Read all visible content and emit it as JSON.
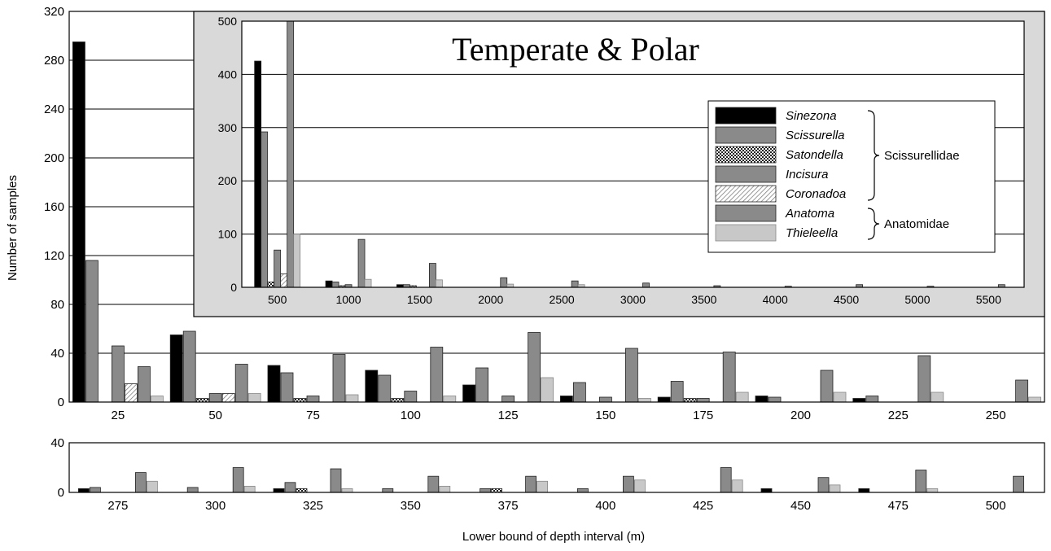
{
  "patterns": {
    "solid": "#000000",
    "gray": "#8a8a8a",
    "checker": "checker",
    "hatch": "hatch",
    "light": "#c8c8c8"
  },
  "chart_data": [
    {
      "id": "main-top",
      "type": "bar",
      "xlabel": "",
      "ylabel": "Number of samples",
      "ylim": [
        0,
        320
      ],
      "yticks": [
        0,
        40,
        80,
        120,
        160,
        200,
        240,
        280,
        320
      ],
      "grid": true,
      "categories": [
        "25",
        "50",
        "75",
        "100",
        "125",
        "150",
        "175",
        "200",
        "225",
        "250"
      ],
      "series": [
        {
          "name": "Sinezona",
          "values": [
            295,
            55,
            30,
            26,
            14,
            5,
            4,
            5,
            3,
            0
          ]
        },
        {
          "name": "Scissurella",
          "values": [
            116,
            58,
            24,
            22,
            28,
            16,
            17,
            4,
            5,
            0
          ]
        },
        {
          "name": "Satondella",
          "values": [
            0,
            3,
            3,
            3,
            0,
            0,
            3,
            0,
            0,
            0
          ]
        },
        {
          "name": "Incisura",
          "values": [
            46,
            7,
            5,
            9,
            5,
            4,
            3,
            0,
            0,
            0
          ]
        },
        {
          "name": "Coronadoa",
          "values": [
            15,
            7,
            0,
            0,
            0,
            0,
            0,
            0,
            0,
            0
          ]
        },
        {
          "name": "Anatoma",
          "values": [
            29,
            31,
            39,
            45,
            57,
            44,
            41,
            26,
            38,
            18
          ]
        },
        {
          "name": "Thieleella",
          "values": [
            5,
            7,
            6,
            5,
            20,
            3,
            8,
            8,
            8,
            4
          ]
        }
      ]
    },
    {
      "id": "main-bottom",
      "type": "bar",
      "xlabel": "Lower bound of depth interval (m)",
      "ylabel": "",
      "ylim": [
        0,
        40
      ],
      "yticks": [
        0,
        40
      ],
      "grid": true,
      "categories": [
        "275",
        "300",
        "325",
        "350",
        "375",
        "400",
        "425",
        "450",
        "475",
        "500"
      ],
      "series": [
        {
          "name": "Sinezona",
          "values": [
            3,
            0,
            3,
            0,
            0,
            0,
            0,
            3,
            3,
            0
          ]
        },
        {
          "name": "Scissurella",
          "values": [
            4,
            4,
            8,
            3,
            3,
            3,
            0,
            0,
            0,
            0
          ]
        },
        {
          "name": "Satondella",
          "values": [
            0,
            0,
            3,
            0,
            3,
            0,
            0,
            0,
            0,
            0
          ]
        },
        {
          "name": "Incisura",
          "values": [
            0,
            0,
            0,
            0,
            0,
            0,
            0,
            0,
            0,
            0
          ]
        },
        {
          "name": "Coronadoa",
          "values": [
            0,
            0,
            0,
            0,
            0,
            0,
            0,
            0,
            0,
            0
          ]
        },
        {
          "name": "Anatoma",
          "values": [
            16,
            20,
            19,
            13,
            13,
            13,
            20,
            12,
            18,
            13
          ]
        },
        {
          "name": "Thieleella",
          "values": [
            9,
            5,
            3,
            5,
            9,
            10,
            10,
            6,
            3,
            0
          ]
        }
      ]
    },
    {
      "id": "inset",
      "type": "bar",
      "title": "Temperate & Polar",
      "xlabel": "",
      "ylabel": "",
      "ylim": [
        0,
        500
      ],
      "yticks": [
        0,
        100,
        200,
        300,
        400,
        500
      ],
      "grid": true,
      "categories": [
        "500",
        "1000",
        "1500",
        "2000",
        "2500",
        "3000",
        "3500",
        "4000",
        "4500",
        "5000",
        "5500"
      ],
      "series": [
        {
          "name": "Sinezona",
          "values": [
            425,
            12,
            5,
            0,
            0,
            0,
            0,
            0,
            0,
            0,
            0
          ]
        },
        {
          "name": "Scissurella",
          "values": [
            292,
            10,
            5,
            0,
            0,
            0,
            0,
            0,
            0,
            0,
            0
          ]
        },
        {
          "name": "Satondella",
          "values": [
            10,
            3,
            3,
            0,
            0,
            0,
            0,
            0,
            0,
            0,
            0
          ]
        },
        {
          "name": "Incisura",
          "values": [
            70,
            5,
            0,
            0,
            0,
            0,
            0,
            0,
            0,
            0,
            0
          ]
        },
        {
          "name": "Coronadoa",
          "values": [
            25,
            0,
            0,
            0,
            0,
            0,
            0,
            0,
            0,
            0,
            0
          ]
        },
        {
          "name": "Anatoma",
          "values": [
            500,
            90,
            45,
            18,
            12,
            8,
            3,
            2,
            5,
            2,
            5
          ]
        },
        {
          "name": "Thieleella",
          "values": [
            100,
            15,
            14,
            6,
            5,
            0,
            0,
            0,
            0,
            0,
            0
          ]
        }
      ],
      "legend": {
        "position": "right",
        "entries": [
          {
            "label": "Sinezona",
            "fill": "solid"
          },
          {
            "label": "Scissurella",
            "fill": "gray"
          },
          {
            "label": "Satondella",
            "fill": "checker"
          },
          {
            "label": "Incisura",
            "fill": "gray"
          },
          {
            "label": "Coronadoa",
            "fill": "hatch"
          },
          {
            "label": "Anatoma",
            "fill": "gray"
          },
          {
            "label": "Thieleella",
            "fill": "light"
          }
        ],
        "groups": [
          {
            "label": "Scissurellidae",
            "from": 0,
            "to": 4
          },
          {
            "label": "Anatomidae",
            "from": 5,
            "to": 6
          }
        ]
      }
    }
  ],
  "series_fills": [
    "solid",
    "gray",
    "checker",
    "gray",
    "hatch",
    "gray",
    "light"
  ]
}
